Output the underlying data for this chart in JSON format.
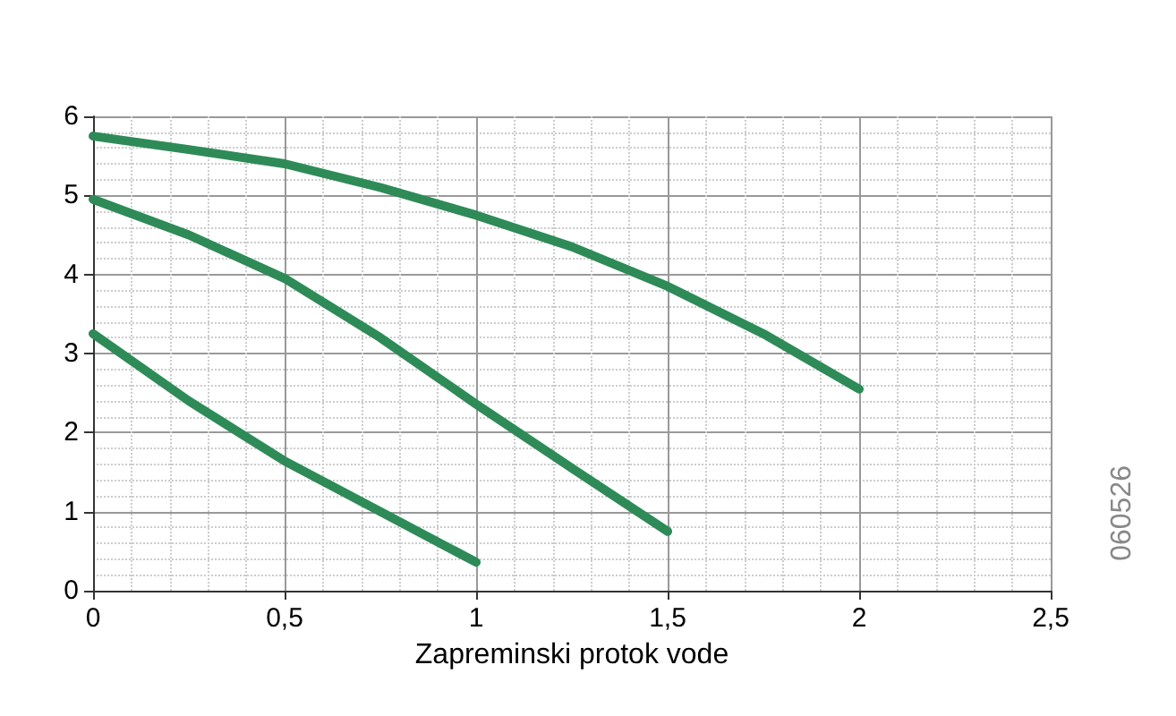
{
  "chart_data": {
    "type": "line",
    "xlabel": "Zapreminski protok vode",
    "annotations": [
      "060526"
    ],
    "xlim": [
      0,
      2.5
    ],
    "xticks": [
      0,
      {
        "value": 0.5,
        "label": "0,5"
      },
      1,
      {
        "value": 1.5,
        "label": "1,5"
      },
      2,
      {
        "value": 2.5,
        "label": "2,5"
      }
    ],
    "ylim": [
      0,
      6
    ],
    "yticks": [
      0,
      1,
      2,
      3,
      4,
      5,
      6
    ],
    "grid": true,
    "marker": "none",
    "line_style": "solid",
    "series": [
      {
        "color": "#2e8b57",
        "x": [
          0,
          0.25,
          0.5,
          0.75,
          1,
          1.25,
          1.5,
          1.75,
          2
        ],
        "values": [
          5.75,
          5.58,
          5.4,
          5.1,
          4.75,
          4.35,
          3.85,
          3.25,
          2.55
        ]
      },
      {
        "color": "#2e8b57",
        "x": [
          0,
          0.25,
          0.5,
          0.75,
          1,
          1.25,
          1.5
        ],
        "values": [
          4.95,
          4.5,
          3.95,
          3.2,
          2.36,
          1.55,
          0.75
        ]
      },
      {
        "color": "#2e8b57",
        "x": [
          0,
          0.25,
          0.5,
          0.75,
          1
        ],
        "values": [
          3.25,
          2.4,
          1.64,
          1.0,
          0.36
        ]
      }
    ]
  }
}
